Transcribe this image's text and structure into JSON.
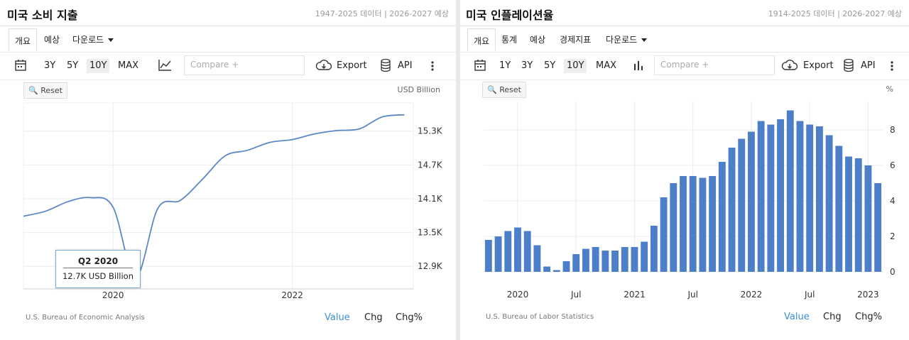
{
  "panel1": {
    "title": "미국 소비 지출",
    "range": "1947-2025 데이터 | 2026-2027 예상",
    "tabs": [
      "개요",
      "예상",
      "다운로드"
    ],
    "periods": [
      "3Y",
      "5Y",
      "10Y",
      "MAX"
    ],
    "selected_period": "10Y",
    "compare_placeholder": "Compare +",
    "export_label": "Export",
    "api_label": "API",
    "reset_label": "Reset",
    "unit": "USD Billion",
    "source": "U.S. Bureau of Economic Analysis",
    "view_tabs": [
      "Value",
      "Chg",
      "Chg%"
    ],
    "tooltip": {
      "title": "Q2 2020",
      "value": "12.7K USD Billion"
    }
  },
  "panel2": {
    "title": "미국 인플레이션율",
    "range": "1914-2025 데이터 | 2026-2027 예상",
    "tabs": [
      "개요",
      "통계",
      "예상",
      "경제지표",
      "다운로드"
    ],
    "periods": [
      "1Y",
      "3Y",
      "5Y",
      "10Y",
      "MAX"
    ],
    "selected_period": "10Y",
    "compare_placeholder": "Compare +",
    "export_label": "Export",
    "api_label": "API",
    "reset_label": "Reset",
    "unit": "%",
    "source": "U.S. Bureau of Labor Statistics",
    "view_tabs": [
      "Value",
      "Chg",
      "Chg%"
    ]
  },
  "chart_data": [
    {
      "type": "line",
      "color": "#5b88c6",
      "x": [
        2019.0,
        2019.25,
        2019.5,
        2019.75,
        2020.0,
        2020.25,
        2020.5,
        2020.75,
        2021.0,
        2021.25,
        2021.5,
        2021.75,
        2022.0,
        2022.25,
        2022.5,
        2022.75,
        2023.0,
        2023.25
      ],
      "y": [
        13.79,
        13.88,
        14.05,
        14.12,
        13.95,
        12.7,
        13.93,
        14.07,
        14.45,
        14.86,
        14.96,
        15.1,
        15.15,
        15.25,
        15.31,
        15.34,
        15.55,
        15.59
      ],
      "y_ticks": [
        "12.9K",
        "13.5K",
        "14.1K",
        "14.7K",
        "15.3K"
      ],
      "y_tick_values": [
        12.9,
        13.5,
        14.1,
        14.7,
        15.3
      ],
      "x_ticks": [
        "2020",
        "2022"
      ],
      "x_tick_values": [
        2020.0,
        2022.0
      ],
      "xlim": [
        2019.0,
        2023.35
      ],
      "ylim": [
        12.5,
        15.8
      ]
    },
    {
      "type": "bar",
      "color": "#4d7fc8",
      "values": [
        1.8,
        2.0,
        2.3,
        2.5,
        2.3,
        1.5,
        0.3,
        0.1,
        0.6,
        1.0,
        1.3,
        1.4,
        1.2,
        1.2,
        1.4,
        1.4,
        1.7,
        2.6,
        4.2,
        5.0,
        5.4,
        5.4,
        5.3,
        5.4,
        6.2,
        7.0,
        7.5,
        7.9,
        8.5,
        8.3,
        8.6,
        9.1,
        8.5,
        8.3,
        8.2,
        7.7,
        7.1,
        6.5,
        6.4,
        6.0,
        5.0
      ],
      "y_ticks": [
        "0",
        "2",
        "4",
        "6",
        "8"
      ],
      "y_tick_values": [
        0,
        2,
        4,
        6,
        8
      ],
      "ylim": [
        0,
        9.6
      ],
      "x_ticks": [
        "2020",
        "Jul",
        "2021",
        "Jul",
        "2022",
        "Jul",
        "2023"
      ],
      "x_tick_index": [
        3.5,
        9.5,
        15.5,
        21.5,
        27.5,
        33.5,
        39.5
      ]
    }
  ]
}
